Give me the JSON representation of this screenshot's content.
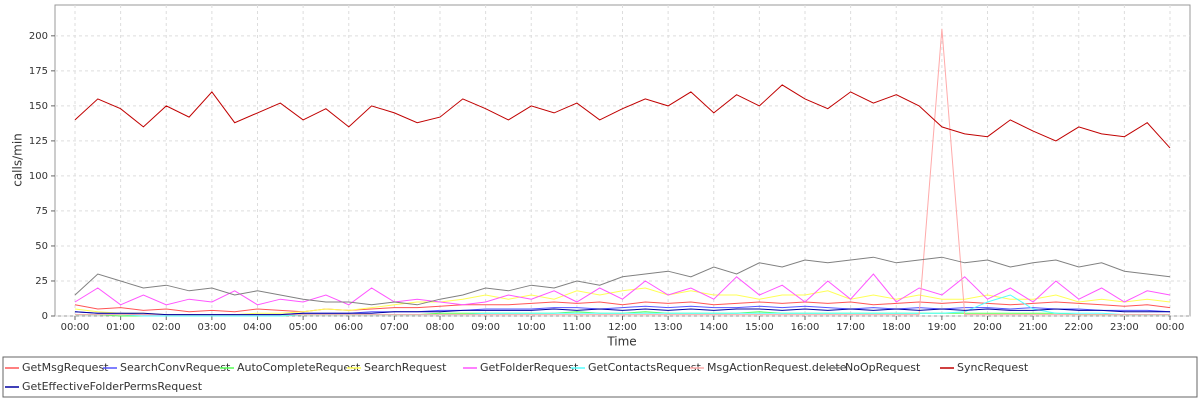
{
  "chart_data": {
    "type": "line",
    "ylabel": "calls/min",
    "xlabel": "Time",
    "categories": [
      "00:00",
      null,
      "01:00",
      null,
      "02:00",
      null,
      "03:00",
      null,
      "04:00",
      null,
      "05:00",
      null,
      "06:00",
      null,
      "07:00",
      null,
      "08:00",
      null,
      "09:00",
      null,
      "10:00",
      null,
      "11:00",
      null,
      "12:00",
      null,
      "13:00",
      null,
      "14:00",
      null,
      "15:00",
      null,
      "16:00",
      null,
      "17:00",
      null,
      "18:00",
      null,
      "19:00",
      null,
      "20:00",
      null,
      "21:00",
      null,
      "22:00",
      null,
      "23:00",
      null,
      "00:00"
    ],
    "ylim": [
      0,
      222
    ],
    "yticks": [
      0,
      25,
      50,
      75,
      100,
      125,
      150,
      175,
      200
    ],
    "grid": true,
    "series": [
      {
        "name": "GetMsgRequest",
        "color": "#ff5555",
        "values": [
          8,
          5,
          6,
          4,
          5,
          3,
          4,
          3,
          5,
          4,
          3,
          5,
          4,
          5,
          6,
          6,
          7,
          8,
          8,
          8,
          9,
          10,
          9,
          10,
          8,
          10,
          9,
          10,
          8,
          9,
          10,
          9,
          10,
          9,
          10,
          8,
          9,
          10,
          9,
          10,
          9,
          8,
          9,
          10,
          9,
          8,
          7,
          8,
          6
        ]
      },
      {
        "name": "SearchConvRequest",
        "color": "#5555ff",
        "values": [
          3,
          2,
          2,
          1,
          1,
          1,
          1,
          1,
          1,
          1,
          2,
          2,
          2,
          3,
          3,
          3,
          4,
          4,
          5,
          5,
          5,
          6,
          6,
          5,
          6,
          7,
          6,
          7,
          6,
          6,
          7,
          6,
          7,
          6,
          5,
          6,
          5,
          6,
          5,
          6,
          6,
          5,
          6,
          5,
          5,
          4,
          4,
          4,
          3
        ]
      },
      {
        "name": "AutoCompleteRequest",
        "color": "#55ff55",
        "values": [
          1,
          1,
          0,
          0,
          0,
          0,
          0,
          0,
          0,
          0,
          1,
          1,
          1,
          1,
          1,
          1,
          2,
          2,
          2,
          2,
          2,
          2,
          3,
          2,
          2,
          3,
          2,
          2,
          2,
          2,
          3,
          2,
          2,
          2,
          2,
          2,
          2,
          2,
          2,
          2,
          2,
          2,
          2,
          2,
          1,
          1,
          1,
          1,
          1
        ]
      },
      {
        "name": "SearchRequest",
        "color": "#ffff55",
        "values": [
          5,
          3,
          2,
          2,
          1,
          1,
          1,
          1,
          2,
          2,
          3,
          5,
          4,
          6,
          8,
          10,
          10,
          12,
          15,
          12,
          15,
          12,
          18,
          15,
          18,
          20,
          15,
          18,
          15,
          15,
          12,
          15,
          15,
          18,
          12,
          15,
          12,
          15,
          12,
          12,
          15,
          12,
          12,
          15,
          10,
          12,
          10,
          12,
          10
        ]
      },
      {
        "name": "GetFolderRequest",
        "color": "#ff55ff",
        "values": [
          10,
          20,
          8,
          15,
          8,
          12,
          10,
          18,
          8,
          12,
          10,
          15,
          8,
          20,
          10,
          12,
          10,
          8,
          10,
          15,
          12,
          18,
          10,
          20,
          12,
          25,
          15,
          20,
          12,
          28,
          15,
          22,
          10,
          25,
          12,
          30,
          10,
          20,
          15,
          28,
          12,
          20,
          10,
          25,
          12,
          20,
          10,
          18,
          15
        ]
      },
      {
        "name": "GetContactsRequest",
        "color": "#55ffff",
        "values": [
          1,
          1,
          1,
          0,
          0,
          0,
          0,
          0,
          0,
          0,
          1,
          1,
          1,
          1,
          1,
          1,
          1,
          1,
          2,
          2,
          2,
          2,
          2,
          2,
          2,
          2,
          2,
          2,
          2,
          2,
          2,
          2,
          2,
          2,
          2,
          2,
          2,
          2,
          2,
          3,
          10,
          15,
          5,
          2,
          2,
          2,
          1,
          1,
          1
        ]
      },
      {
        "name": "MsgActionRequest.delete",
        "color": "#ffaaaa",
        "values": [
          1,
          1,
          1,
          1,
          1,
          1,
          1,
          1,
          1,
          1,
          1,
          1,
          1,
          1,
          1,
          1,
          1,
          1,
          1,
          1,
          1,
          1,
          1,
          1,
          1,
          1,
          1,
          1,
          1,
          1,
          1,
          1,
          1,
          1,
          1,
          1,
          1,
          1,
          205,
          1,
          1,
          1,
          1,
          1,
          1,
          1,
          1,
          1,
          1
        ]
      },
      {
        "name": "NoOpRequest",
        "color": "#808080",
        "values": [
          15,
          30,
          25,
          20,
          22,
          18,
          20,
          15,
          18,
          15,
          12,
          10,
          10,
          8,
          10,
          8,
          12,
          15,
          20,
          18,
          22,
          20,
          25,
          22,
          28,
          30,
          32,
          28,
          35,
          30,
          38,
          35,
          40,
          38,
          40,
          42,
          38,
          40,
          42,
          38,
          40,
          35,
          38,
          40,
          35,
          38,
          32,
          30,
          28
        ]
      },
      {
        "name": "SyncRequest",
        "color": "#c00000",
        "values": [
          140,
          155,
          148,
          135,
          150,
          142,
          160,
          138,
          145,
          152,
          140,
          148,
          135,
          150,
          145,
          138,
          142,
          155,
          148,
          140,
          150,
          145,
          152,
          140,
          148,
          155,
          150,
          160,
          145,
          158,
          150,
          165,
          155,
          148,
          160,
          152,
          158,
          150,
          135,
          130,
          128,
          140,
          132,
          125,
          135,
          130,
          128,
          138,
          120
        ]
      },
      {
        "name": "GetEffectiveFolderPermsRequest",
        "color": "#0000a0",
        "values": [
          3,
          2,
          2,
          2,
          1,
          1,
          1,
          1,
          1,
          1,
          2,
          2,
          2,
          2,
          3,
          3,
          3,
          4,
          4,
          4,
          4,
          5,
          4,
          5,
          4,
          5,
          4,
          5,
          4,
          5,
          5,
          4,
          5,
          4,
          5,
          4,
          5,
          4,
          5,
          4,
          5,
          4,
          4,
          5,
          4,
          4,
          3,
          3,
          3
        ]
      }
    ]
  }
}
